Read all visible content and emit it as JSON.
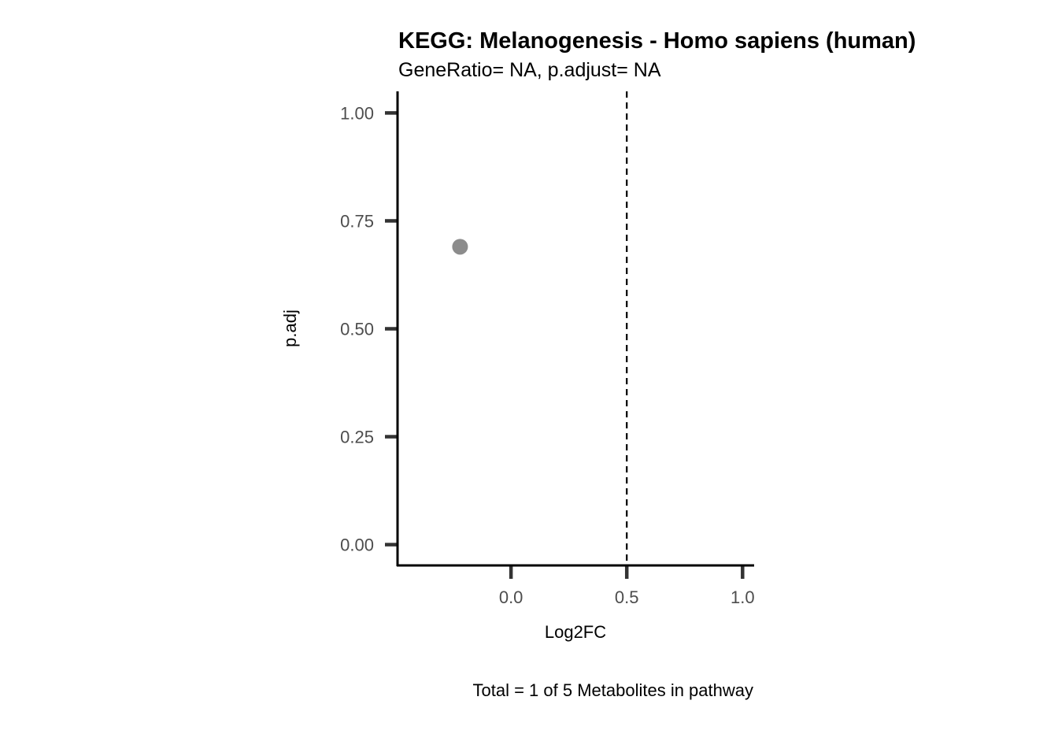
{
  "chart_data": {
    "type": "scatter",
    "title": "KEGG: Melanogenesis - Homo sapiens (human)",
    "subtitle": "GeneRatio= NA, p.adjust= NA",
    "xlabel": "Log2FC",
    "ylabel": "p.adj",
    "caption": "Total = 1 of 5 Metabolites in pathway",
    "xlim": [
      -0.49,
      1.05
    ],
    "ylim": [
      -0.05,
      1.05
    ],
    "x_ticks": [
      {
        "value": 0.0,
        "label": "0.0"
      },
      {
        "value": 0.5,
        "label": "0.5"
      },
      {
        "value": 1.0,
        "label": "1.0"
      }
    ],
    "y_ticks": [
      {
        "value": 0.0,
        "label": "0.00"
      },
      {
        "value": 0.25,
        "label": "0.25"
      },
      {
        "value": 0.5,
        "label": "0.50"
      },
      {
        "value": 0.75,
        "label": "0.75"
      },
      {
        "value": 1.0,
        "label": "1.00"
      }
    ],
    "reference_lines": [
      {
        "orientation": "vertical",
        "x": 0.5,
        "style": "dashed",
        "color": "#000000"
      }
    ],
    "points": [
      {
        "x": -0.22,
        "y": 0.69,
        "color": "#8c8c8c"
      }
    ],
    "grid": false,
    "legend": "none"
  }
}
